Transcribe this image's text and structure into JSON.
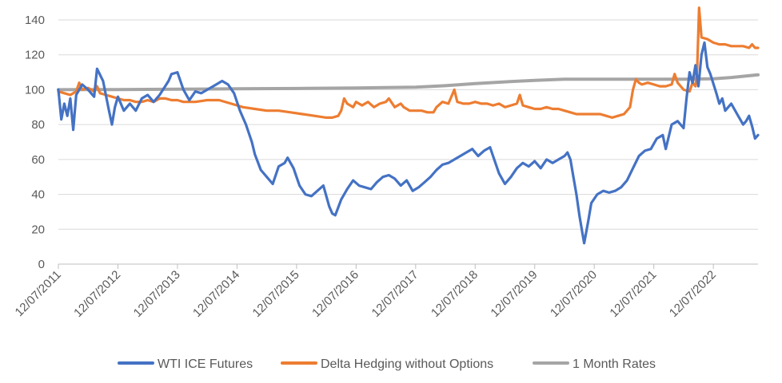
{
  "chart_data": {
    "type": "line",
    "title": "",
    "xlabel": "",
    "ylabel": "",
    "ylim": [
      0,
      150
    ],
    "y_ticks": [
      "0",
      "20",
      "40",
      "60",
      "80",
      "100",
      "120",
      "140"
    ],
    "grid": true,
    "legend_position": "bottom",
    "x_ticks": [
      "12/07/2011",
      "12/07/2012",
      "12/07/2013",
      "12/07/2014",
      "12/07/2015",
      "12/07/2016",
      "12/07/2017",
      "12/07/2018",
      "12/07/2019",
      "12/07/2020",
      "12/07/2021",
      "12/07/2022"
    ],
    "x_range_years": [
      0,
      11.75
    ],
    "series": [
      {
        "name": "WTI ICE Futures",
        "color": "#4472C4",
        "points": [
          [
            0,
            100
          ],
          [
            0.05,
            83
          ],
          [
            0.1,
            92
          ],
          [
            0.15,
            85
          ],
          [
            0.2,
            95
          ],
          [
            0.25,
            77
          ],
          [
            0.3,
            97
          ],
          [
            0.4,
            103
          ],
          [
            0.5,
            100
          ],
          [
            0.6,
            96
          ],
          [
            0.65,
            112
          ],
          [
            0.75,
            105
          ],
          [
            0.85,
            88
          ],
          [
            0.9,
            80
          ],
          [
            0.95,
            90
          ],
          [
            1.0,
            96
          ],
          [
            1.1,
            88
          ],
          [
            1.2,
            92
          ],
          [
            1.3,
            88
          ],
          [
            1.4,
            95
          ],
          [
            1.5,
            97
          ],
          [
            1.6,
            93
          ],
          [
            1.7,
            97
          ],
          [
            1.85,
            105
          ],
          [
            1.9,
            109
          ],
          [
            2.0,
            110
          ],
          [
            2.1,
            100
          ],
          [
            2.2,
            94
          ],
          [
            2.3,
            99
          ],
          [
            2.4,
            98
          ],
          [
            2.5,
            100
          ],
          [
            2.6,
            102
          ],
          [
            2.75,
            105
          ],
          [
            2.85,
            103
          ],
          [
            2.95,
            98
          ],
          [
            3.05,
            88
          ],
          [
            3.15,
            80
          ],
          [
            3.25,
            70
          ],
          [
            3.3,
            63
          ],
          [
            3.4,
            54
          ],
          [
            3.5,
            50
          ],
          [
            3.6,
            46
          ],
          [
            3.7,
            56
          ],
          [
            3.8,
            58
          ],
          [
            3.85,
            61
          ],
          [
            3.95,
            55
          ],
          [
            4.05,
            45
          ],
          [
            4.15,
            40
          ],
          [
            4.25,
            39
          ],
          [
            4.35,
            42
          ],
          [
            4.45,
            45
          ],
          [
            4.55,
            33
          ],
          [
            4.6,
            29
          ],
          [
            4.65,
            28
          ],
          [
            4.75,
            37
          ],
          [
            4.85,
            43
          ],
          [
            4.95,
            48
          ],
          [
            5.05,
            45
          ],
          [
            5.15,
            44
          ],
          [
            5.25,
            43
          ],
          [
            5.35,
            47
          ],
          [
            5.45,
            50
          ],
          [
            5.55,
            51
          ],
          [
            5.65,
            49
          ],
          [
            5.75,
            45
          ],
          [
            5.85,
            48
          ],
          [
            5.95,
            42
          ],
          [
            6.05,
            44
          ],
          [
            6.15,
            47
          ],
          [
            6.25,
            50
          ],
          [
            6.35,
            54
          ],
          [
            6.45,
            57
          ],
          [
            6.55,
            58
          ],
          [
            6.65,
            60
          ],
          [
            6.75,
            62
          ],
          [
            6.85,
            64
          ],
          [
            6.95,
            66
          ],
          [
            7.05,
            62
          ],
          [
            7.15,
            65
          ],
          [
            7.25,
            67
          ],
          [
            7.3,
            62
          ],
          [
            7.4,
            52
          ],
          [
            7.5,
            46
          ],
          [
            7.6,
            50
          ],
          [
            7.7,
            55
          ],
          [
            7.8,
            58
          ],
          [
            7.9,
            56
          ],
          [
            8.0,
            59
          ],
          [
            8.1,
            55
          ],
          [
            8.2,
            60
          ],
          [
            8.3,
            58
          ],
          [
            8.4,
            60
          ],
          [
            8.5,
            62
          ],
          [
            8.55,
            64
          ],
          [
            8.6,
            60
          ],
          [
            8.65,
            50
          ],
          [
            8.7,
            40
          ],
          [
            8.75,
            28
          ],
          [
            8.8,
            18
          ],
          [
            8.83,
            12
          ],
          [
            8.9,
            25
          ],
          [
            8.95,
            35
          ],
          [
            9.05,
            40
          ],
          [
            9.15,
            42
          ],
          [
            9.25,
            41
          ],
          [
            9.35,
            42
          ],
          [
            9.45,
            44
          ],
          [
            9.55,
            48
          ],
          [
            9.65,
            55
          ],
          [
            9.75,
            62
          ],
          [
            9.85,
            65
          ],
          [
            9.95,
            66
          ],
          [
            10.05,
            72
          ],
          [
            10.15,
            74
          ],
          [
            10.2,
            66
          ],
          [
            10.3,
            80
          ],
          [
            10.4,
            82
          ],
          [
            10.5,
            78
          ],
          [
            10.55,
            95
          ],
          [
            10.6,
            110
          ],
          [
            10.65,
            104
          ],
          [
            10.7,
            114
          ],
          [
            10.75,
            102
          ],
          [
            10.8,
            120
          ],
          [
            10.85,
            127
          ],
          [
            10.9,
            113
          ],
          [
            10.95,
            109
          ],
          [
            11.05,
            98
          ],
          [
            11.1,
            92
          ],
          [
            11.15,
            95
          ],
          [
            11.2,
            88
          ],
          [
            11.3,
            92
          ],
          [
            11.4,
            86
          ],
          [
            11.5,
            80
          ],
          [
            11.55,
            82
          ],
          [
            11.6,
            85
          ],
          [
            11.65,
            79
          ],
          [
            11.7,
            72
          ],
          [
            11.75,
            74
          ]
        ]
      },
      {
        "name": "Delta Hedging without Options",
        "color": "#ED7D31",
        "points": [
          [
            0,
            99
          ],
          [
            0.1,
            98
          ],
          [
            0.2,
            97
          ],
          [
            0.3,
            99
          ],
          [
            0.35,
            104
          ],
          [
            0.4,
            100
          ],
          [
            0.5,
            101
          ],
          [
            0.6,
            99
          ],
          [
            0.65,
            102
          ],
          [
            0.7,
            98
          ],
          [
            0.8,
            97
          ],
          [
            0.9,
            96
          ],
          [
            1.0,
            95
          ],
          [
            1.1,
            94
          ],
          [
            1.2,
            94
          ],
          [
            1.3,
            93
          ],
          [
            1.4,
            93
          ],
          [
            1.5,
            94
          ],
          [
            1.6,
            93
          ],
          [
            1.7,
            95
          ],
          [
            1.8,
            95
          ],
          [
            1.9,
            94
          ],
          [
            2.0,
            94
          ],
          [
            2.1,
            93
          ],
          [
            2.3,
            93
          ],
          [
            2.5,
            94
          ],
          [
            2.7,
            94
          ],
          [
            2.9,
            92
          ],
          [
            3.1,
            90
          ],
          [
            3.3,
            89
          ],
          [
            3.5,
            88
          ],
          [
            3.7,
            88
          ],
          [
            3.9,
            87
          ],
          [
            4.1,
            86
          ],
          [
            4.3,
            85
          ],
          [
            4.5,
            84
          ],
          [
            4.6,
            84
          ],
          [
            4.7,
            85
          ],
          [
            4.75,
            88
          ],
          [
            4.8,
            95
          ],
          [
            4.85,
            92
          ],
          [
            4.95,
            90
          ],
          [
            5.0,
            93
          ],
          [
            5.1,
            91
          ],
          [
            5.2,
            93
          ],
          [
            5.3,
            90
          ],
          [
            5.4,
            92
          ],
          [
            5.5,
            93
          ],
          [
            5.55,
            95
          ],
          [
            5.65,
            90
          ],
          [
            5.75,
            92
          ],
          [
            5.8,
            90
          ],
          [
            5.9,
            88
          ],
          [
            6.0,
            88
          ],
          [
            6.1,
            88
          ],
          [
            6.2,
            87
          ],
          [
            6.3,
            87
          ],
          [
            6.35,
            90
          ],
          [
            6.45,
            93
          ],
          [
            6.55,
            92
          ],
          [
            6.6,
            96
          ],
          [
            6.65,
            100
          ],
          [
            6.7,
            93
          ],
          [
            6.8,
            92
          ],
          [
            6.9,
            92
          ],
          [
            7.0,
            93
          ],
          [
            7.1,
            92
          ],
          [
            7.2,
            92
          ],
          [
            7.3,
            91
          ],
          [
            7.4,
            92
          ],
          [
            7.5,
            90
          ],
          [
            7.6,
            91
          ],
          [
            7.7,
            92
          ],
          [
            7.75,
            97
          ],
          [
            7.8,
            91
          ],
          [
            7.9,
            90
          ],
          [
            8.0,
            89
          ],
          [
            8.1,
            89
          ],
          [
            8.2,
            90
          ],
          [
            8.3,
            89
          ],
          [
            8.4,
            89
          ],
          [
            8.5,
            88
          ],
          [
            8.6,
            87
          ],
          [
            8.7,
            86
          ],
          [
            8.8,
            86
          ],
          [
            8.9,
            86
          ],
          [
            9.0,
            86
          ],
          [
            9.1,
            86
          ],
          [
            9.2,
            85
          ],
          [
            9.3,
            84
          ],
          [
            9.4,
            85
          ],
          [
            9.5,
            86
          ],
          [
            9.6,
            90
          ],
          [
            9.65,
            100
          ],
          [
            9.7,
            106
          ],
          [
            9.75,
            104
          ],
          [
            9.8,
            103
          ],
          [
            9.9,
            104
          ],
          [
            10.0,
            103
          ],
          [
            10.1,
            102
          ],
          [
            10.2,
            102
          ],
          [
            10.3,
            103
          ],
          [
            10.35,
            109
          ],
          [
            10.4,
            104
          ],
          [
            10.5,
            100
          ],
          [
            10.6,
            99
          ],
          [
            10.65,
            104
          ],
          [
            10.7,
            102
          ],
          [
            10.73,
            113
          ],
          [
            10.76,
            147
          ],
          [
            10.8,
            130
          ],
          [
            10.9,
            129
          ],
          [
            11.0,
            127
          ],
          [
            11.1,
            126
          ],
          [
            11.2,
            126
          ],
          [
            11.3,
            125
          ],
          [
            11.4,
            125
          ],
          [
            11.5,
            125
          ],
          [
            11.6,
            124
          ],
          [
            11.65,
            126
          ],
          [
            11.7,
            124
          ],
          [
            11.75,
            124
          ]
        ]
      },
      {
        "name": "1 Month Rates",
        "color": "#A5A5A5",
        "points": [
          [
            0,
            100
          ],
          [
            1,
            100.1
          ],
          [
            2,
            100.3
          ],
          [
            3,
            100.5
          ],
          [
            4,
            100.7
          ],
          [
            5,
            101
          ],
          [
            6,
            101.5
          ],
          [
            6.5,
            102.3
          ],
          [
            7,
            103.5
          ],
          [
            7.5,
            104.5
          ],
          [
            8,
            105.3
          ],
          [
            8.5,
            106
          ],
          [
            9,
            106
          ],
          [
            9.5,
            106
          ],
          [
            10,
            106
          ],
          [
            10.5,
            106
          ],
          [
            11,
            106.3
          ],
          [
            11.3,
            107
          ],
          [
            11.6,
            108
          ],
          [
            11.75,
            108.5
          ]
        ]
      }
    ]
  }
}
